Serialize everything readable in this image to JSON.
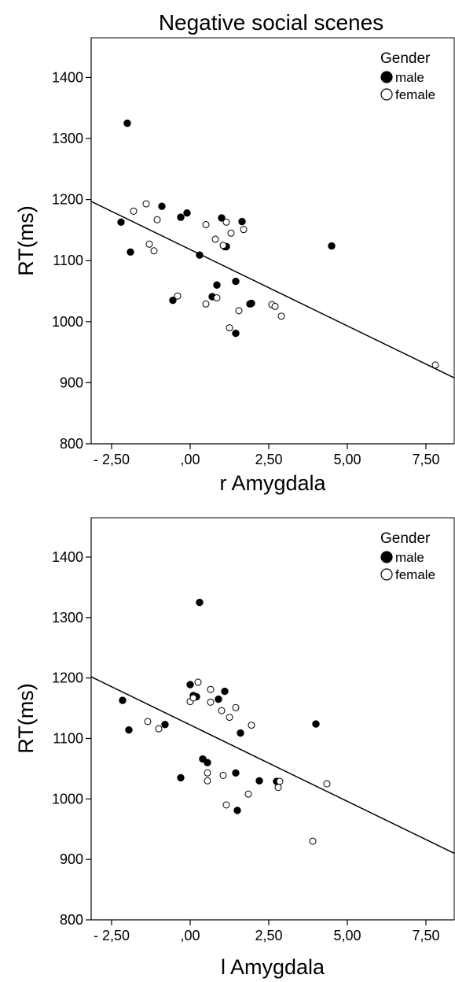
{
  "figure_title": "Negative social scenes",
  "chart_data": [
    {
      "type": "scatter",
      "title": "Negative social scenes",
      "xlabel": "r Amygdala",
      "ylabel": "RT(ms)",
      "xlim": [
        -3.15,
        8.4
      ],
      "ylim": [
        800,
        1465
      ],
      "xticks": [
        -2.5,
        0,
        2.5,
        5,
        7.5
      ],
      "xtick_labels": [
        "- 2,50",
        ",00",
        "2,50",
        "5,00",
        "7,50"
      ],
      "yticks": [
        800,
        900,
        1000,
        1100,
        1200,
        1300,
        1400
      ],
      "ytick_labels": [
        "800",
        "900",
        "1000",
        "1100",
        "1200",
        "1300",
        "1400"
      ],
      "legend": {
        "title": "Gender",
        "position": "top-right",
        "entries": [
          "male",
          "female"
        ]
      },
      "fit_line": [
        [
          -3.15,
          1197
        ],
        [
          8.4,
          908
        ]
      ],
      "series": [
        {
          "name": "male",
          "marker": "filled",
          "points": [
            [
              -2.0,
              1325
            ],
            [
              -2.2,
              1163
            ],
            [
              -1.9,
              1114
            ],
            [
              -0.9,
              1189
            ],
            [
              -0.3,
              1171
            ],
            [
              -0.1,
              1178
            ],
            [
              1.0,
              1170
            ],
            [
              1.65,
              1164
            ],
            [
              1.1,
              1123
            ],
            [
              1.15,
              1123
            ],
            [
              4.5,
              1124
            ],
            [
              0.3,
              1109
            ],
            [
              1.45,
              1066
            ],
            [
              0.85,
              1060
            ],
            [
              -0.55,
              1035
            ],
            [
              0.7,
              1041
            ],
            [
              1.9,
              1029
            ],
            [
              1.95,
              1030
            ],
            [
              1.45,
              981
            ]
          ]
        },
        {
          "name": "female",
          "marker": "open",
          "points": [
            [
              -1.8,
              1181
            ],
            [
              -1.4,
              1193
            ],
            [
              -1.05,
              1167
            ],
            [
              0.5,
              1159
            ],
            [
              1.15,
              1163
            ],
            [
              1.7,
              1151
            ],
            [
              1.3,
              1145
            ],
            [
              0.8,
              1135
            ],
            [
              1.05,
              1125
            ],
            [
              -1.3,
              1127
            ],
            [
              -1.15,
              1116
            ],
            [
              -0.4,
              1042
            ],
            [
              0.5,
              1029
            ],
            [
              0.85,
              1039
            ],
            [
              2.6,
              1028
            ],
            [
              2.7,
              1025
            ],
            [
              1.55,
              1018
            ],
            [
              1.25,
              990
            ],
            [
              2.9,
              1009
            ],
            [
              7.8,
              929
            ]
          ]
        }
      ]
    },
    {
      "type": "scatter",
      "xlabel": "l Amygdala",
      "ylabel": "RT(ms)",
      "xlim": [
        -3.15,
        8.4
      ],
      "ylim": [
        800,
        1465
      ],
      "xticks": [
        -2.5,
        0,
        2.5,
        5,
        7.5
      ],
      "xtick_labels": [
        "- 2,50",
        ",00",
        "2,50",
        "5,00",
        "7,50"
      ],
      "yticks": [
        800,
        900,
        1000,
        1100,
        1200,
        1300,
        1400
      ],
      "ytick_labels": [
        "800",
        "900",
        "1000",
        "1100",
        "1200",
        "1300",
        "1400"
      ],
      "legend": {
        "title": "Gender",
        "position": "top-right",
        "entries": [
          "male",
          "female"
        ]
      },
      "fit_line": [
        [
          -3.15,
          1202
        ],
        [
          8.4,
          910
        ]
      ],
      "series": [
        {
          "name": "male",
          "marker": "filled",
          "points": [
            [
              0.3,
              1325
            ],
            [
              -2.15,
              1163
            ],
            [
              -1.95,
              1114
            ],
            [
              -0.8,
              1123
            ],
            [
              0.0,
              1189
            ],
            [
              0.1,
              1171
            ],
            [
              0.2,
              1169
            ],
            [
              1.1,
              1178
            ],
            [
              0.9,
              1165
            ],
            [
              1.6,
              1109
            ],
            [
              4.0,
              1124
            ],
            [
              0.4,
              1066
            ],
            [
              0.55,
              1060
            ],
            [
              1.45,
              1043
            ],
            [
              -0.3,
              1035
            ],
            [
              2.2,
              1030
            ],
            [
              2.75,
              1029
            ],
            [
              1.5,
              981
            ]
          ]
        },
        {
          "name": "female",
          "marker": "open",
          "points": [
            [
              0.25,
              1193
            ],
            [
              0.0,
              1161
            ],
            [
              0.1,
              1167
            ],
            [
              0.65,
              1181
            ],
            [
              0.65,
              1160
            ],
            [
              1.0,
              1146
            ],
            [
              1.45,
              1151
            ],
            [
              1.25,
              1135
            ],
            [
              1.95,
              1122
            ],
            [
              -1.35,
              1128
            ],
            [
              -1.0,
              1116
            ],
            [
              0.55,
              1043
            ],
            [
              0.55,
              1030
            ],
            [
              1.05,
              1039
            ],
            [
              2.85,
              1029
            ],
            [
              2.8,
              1019
            ],
            [
              1.85,
              1008
            ],
            [
              1.15,
              990
            ],
            [
              4.35,
              1025
            ],
            [
              3.9,
              930
            ]
          ]
        }
      ]
    }
  ]
}
